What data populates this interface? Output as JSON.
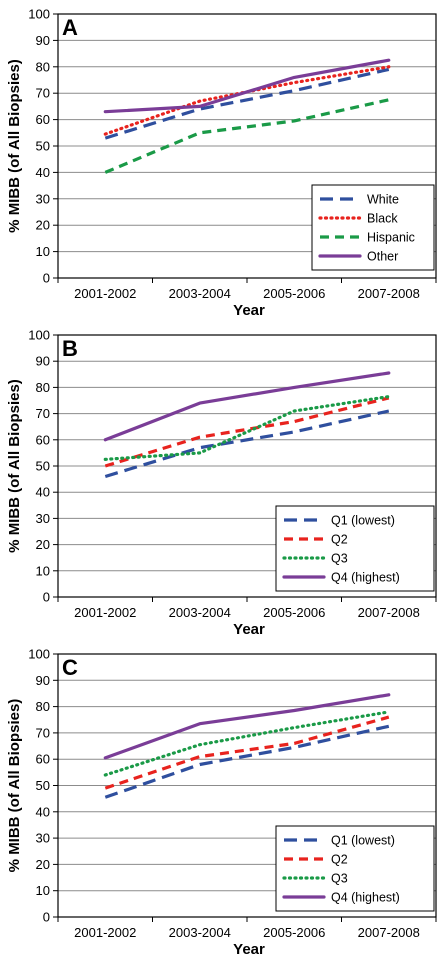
{
  "chart_data": [
    {
      "type": "line",
      "panel_label": "A",
      "categories": [
        "2001-2002",
        "2003-2004",
        "2005-2006",
        "2007-2008"
      ],
      "ylabel": "% MIBB (of All Biopsies)",
      "xlabel": "Year",
      "ylim": [
        0,
        100
      ],
      "yticks": [
        0,
        10,
        20,
        30,
        40,
        50,
        60,
        70,
        80,
        90,
        100
      ],
      "grid": "horizontal",
      "legend_position": "bottom-right",
      "series": [
        {
          "name": "White",
          "color": "#2f4f9e",
          "dash": "long-dash",
          "values": [
            53,
            64,
            71,
            79
          ]
        },
        {
          "name": "Black",
          "color": "#e8231e",
          "dash": "dotted",
          "values": [
            54.5,
            67,
            74,
            80
          ]
        },
        {
          "name": "Hispanic",
          "color": "#1a9a47",
          "dash": "dash",
          "values": [
            40,
            55,
            59.5,
            67.5
          ]
        },
        {
          "name": "Other",
          "color": "#7a3d97",
          "dash": "solid",
          "values": [
            63,
            65,
            76,
            82.5
          ]
        }
      ]
    },
    {
      "type": "line",
      "panel_label": "B",
      "categories": [
        "2001-2002",
        "2003-2004",
        "2005-2006",
        "2007-2008"
      ],
      "ylabel": "% MIBB (of All Biopsies)",
      "xlabel": "Year",
      "ylim": [
        0,
        100
      ],
      "yticks": [
        0,
        10,
        20,
        30,
        40,
        50,
        60,
        70,
        80,
        90,
        100
      ],
      "grid": "horizontal",
      "legend_position": "bottom-right",
      "series": [
        {
          "name": "Q1 (lowest)",
          "color": "#2f4f9e",
          "dash": "long-dash",
          "values": [
            46,
            57,
            63,
            71
          ]
        },
        {
          "name": "Q2",
          "color": "#e8231e",
          "dash": "dash",
          "values": [
            50,
            61,
            67,
            76
          ]
        },
        {
          "name": "Q3",
          "color": "#1a9a47",
          "dash": "dotted",
          "values": [
            52.5,
            55,
            71,
            76.5
          ]
        },
        {
          "name": "Q4 (highest)",
          "color": "#7a3d97",
          "dash": "solid",
          "values": [
            60,
            74,
            80,
            85.5
          ]
        }
      ]
    },
    {
      "type": "line",
      "panel_label": "C",
      "categories": [
        "2001-2002",
        "2003-2004",
        "2005-2006",
        "2007-2008"
      ],
      "ylabel": "% MIBB (of All Biopsies)",
      "xlabel": "Year",
      "ylim": [
        0,
        100
      ],
      "yticks": [
        0,
        10,
        20,
        30,
        40,
        50,
        60,
        70,
        80,
        90,
        100
      ],
      "grid": "horizontal",
      "legend_position": "bottom-right",
      "series": [
        {
          "name": "Q1 (lowest)",
          "color": "#2f4f9e",
          "dash": "long-dash",
          "values": [
            45.5,
            58,
            64.5,
            72.5
          ]
        },
        {
          "name": "Q2",
          "color": "#e8231e",
          "dash": "dash",
          "values": [
            49,
            61,
            66,
            76
          ]
        },
        {
          "name": "Q3",
          "color": "#1a9a47",
          "dash": "dotted",
          "values": [
            54,
            65.5,
            72,
            78
          ]
        },
        {
          "name": "Q4 (highest)",
          "color": "#7a3d97",
          "dash": "solid",
          "values": [
            60.5,
            73.5,
            78.5,
            84.5
          ]
        }
      ]
    }
  ]
}
